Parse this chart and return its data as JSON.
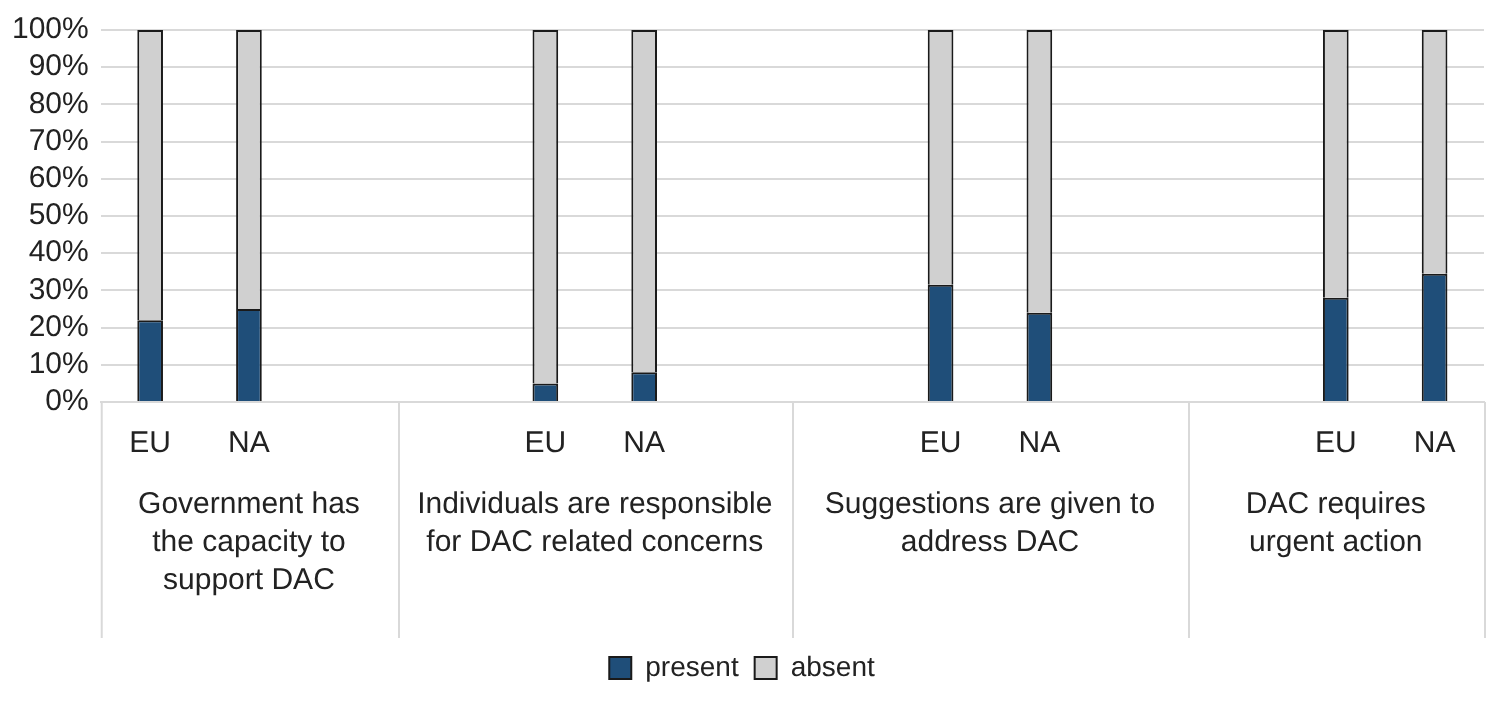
{
  "chart_data": {
    "type": "bar",
    "stacked": true,
    "categories": [
      "EU",
      "NA",
      null,
      null,
      "EU",
      "NA",
      null,
      null,
      "EU",
      "NA",
      null,
      null,
      "EU",
      "NA"
    ],
    "series": [
      {
        "name": "present",
        "color": "#1f4e79",
        "values": [
          22,
          25,
          null,
          null,
          5,
          8,
          null,
          null,
          31.5,
          24,
          null,
          null,
          28,
          34.5
        ]
      },
      {
        "name": "absent",
        "color": "#d0d0d0",
        "values": [
          78,
          75,
          null,
          null,
          95,
          92,
          null,
          null,
          68.5,
          76,
          null,
          null,
          72,
          65.5
        ]
      }
    ],
    "ylim": [
      0,
      100
    ],
    "yticks": [
      {
        "value": 0,
        "label": "0%"
      },
      {
        "value": 10,
        "label": "10%"
      },
      {
        "value": 20,
        "label": "20%"
      },
      {
        "value": 30,
        "label": "30%"
      },
      {
        "value": 40,
        "label": "40%"
      },
      {
        "value": 50,
        "label": "50%"
      },
      {
        "value": 60,
        "label": "60%"
      },
      {
        "value": 70,
        "label": "70%"
      },
      {
        "value": 80,
        "label": "80%"
      },
      {
        "value": 90,
        "label": "90%"
      },
      {
        "value": 100,
        "label": "100%"
      }
    ],
    "grid": "y",
    "legend": "bottom",
    "annotations": [
      "Government has the capacity to support DAC",
      "Individuals are responsible for DAC related concerns",
      "Suggestions are given to address DAC",
      "DAC requires urgent action"
    ]
  }
}
